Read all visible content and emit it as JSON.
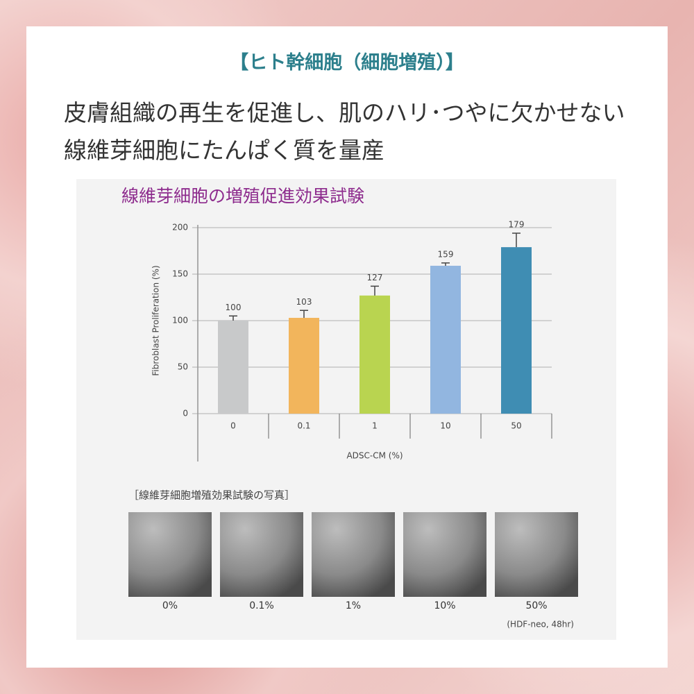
{
  "heading": "【ヒト幹細胞（細胞増殖）】",
  "lead": [
    "皮膚組織の再生を促進し、肌のハリ･つやに欠かせない",
    "線維芽細胞にたんぱく質を量産"
  ],
  "chart_data": {
    "type": "bar",
    "title": "線維芽細胞の増殖促進効果試験",
    "y_label": "Fibroblast Proliferation (%)",
    "x_label": "ADSC-CM (%)",
    "categories": [
      "0",
      "0.1",
      "1",
      "10",
      "50"
    ],
    "values": [
      100,
      103,
      127,
      159,
      179
    ],
    "errors": [
      5,
      8,
      10,
      3,
      15
    ],
    "colors": [
      "#c8c9ca",
      "#f2b55c",
      "#b9d450",
      "#92b6e0",
      "#3f8db3"
    ],
    "ylim": [
      0,
      200
    ],
    "yticks": [
      0,
      50,
      100,
      150,
      200
    ]
  },
  "photos": {
    "title": "［線維芽細胞増殖効果試験の写真］",
    "labels": [
      "0%",
      "0.1%",
      "1%",
      "10%",
      "50%"
    ],
    "note": "(HDF-neo, 48hr)"
  }
}
